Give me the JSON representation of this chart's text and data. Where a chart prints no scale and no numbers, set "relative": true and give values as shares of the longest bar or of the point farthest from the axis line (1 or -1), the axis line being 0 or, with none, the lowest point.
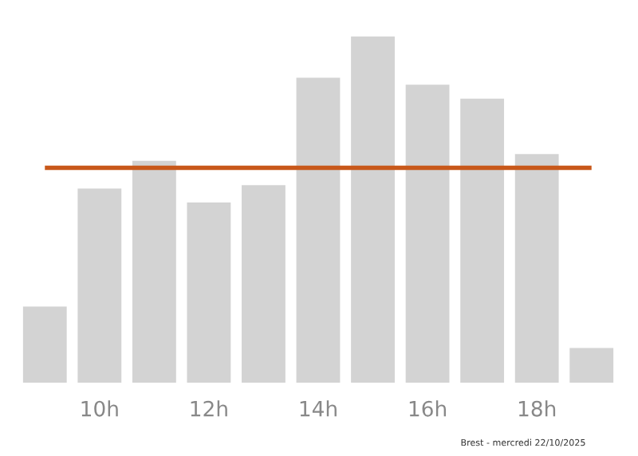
{
  "chart_data": {
    "type": "bar",
    "relative": true,
    "categories": [
      null,
      "10h",
      null,
      "12h",
      null,
      "14h",
      null,
      "16h",
      null,
      "18h",
      null
    ],
    "values": [
      0.22,
      0.56,
      0.64,
      0.52,
      0.57,
      0.88,
      1,
      0.86,
      0.82,
      0.66,
      0.1
    ],
    "color": "#d3d3d3",
    "ref_lines": [
      {
        "axis": "y",
        "value": 0.62,
        "color": "#c8581a"
      }
    ],
    "annotations": [
      "Brest - mercredi 22/10/2025"
    ],
    "grid": false,
    "legend": false
  }
}
